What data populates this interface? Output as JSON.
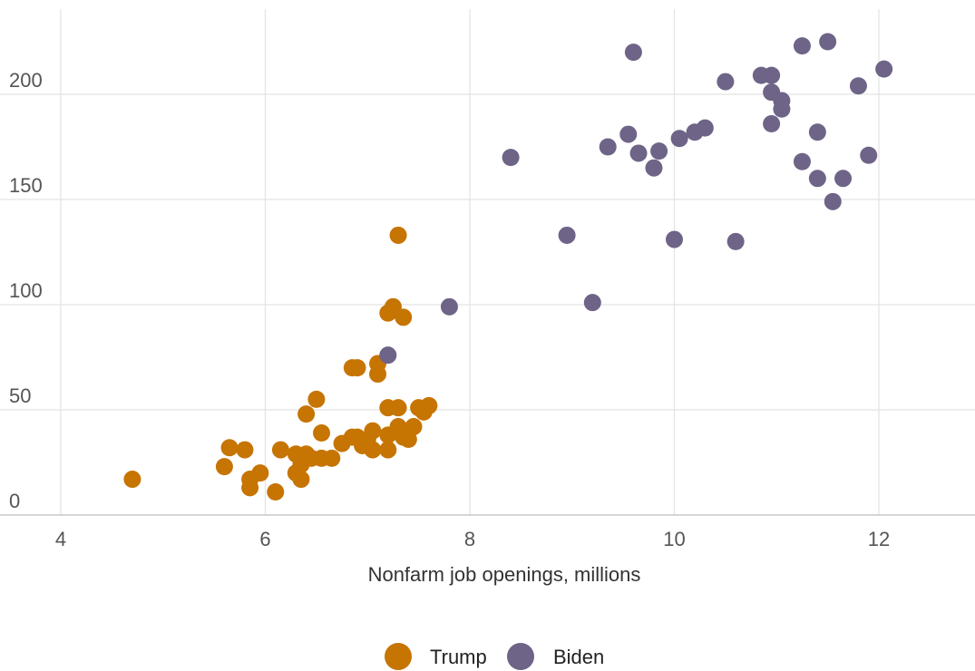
{
  "chart_data": {
    "type": "scatter",
    "xlabel": "Nonfarm job openings, millions",
    "ylabel": "",
    "xlim": [
      4,
      13
    ],
    "ylim": [
      0,
      235
    ],
    "x_ticks": [
      4,
      6,
      8,
      10,
      12
    ],
    "y_ticks": [
      0,
      50,
      100,
      150,
      200
    ],
    "grid": true,
    "legend_position": "bottom",
    "series": [
      {
        "name": "Trump",
        "color": "#c67402",
        "points": [
          [
            4.7,
            17
          ],
          [
            5.6,
            23
          ],
          [
            5.65,
            32
          ],
          [
            5.8,
            31
          ],
          [
            5.85,
            13
          ],
          [
            5.85,
            17
          ],
          [
            5.95,
            20
          ],
          [
            6.1,
            11
          ],
          [
            6.15,
            31
          ],
          [
            6.3,
            20
          ],
          [
            6.3,
            29
          ],
          [
            6.35,
            17
          ],
          [
            6.35,
            24
          ],
          [
            6.4,
            29
          ],
          [
            6.4,
            48
          ],
          [
            6.45,
            27
          ],
          [
            6.5,
            55
          ],
          [
            6.55,
            39
          ],
          [
            6.55,
            27
          ],
          [
            6.65,
            27
          ],
          [
            6.75,
            34
          ],
          [
            6.85,
            37
          ],
          [
            6.85,
            70
          ],
          [
            6.9,
            70
          ],
          [
            6.9,
            37
          ],
          [
            6.95,
            33
          ],
          [
            7.0,
            36
          ],
          [
            7.05,
            31
          ],
          [
            7.05,
            40
          ],
          [
            7.1,
            72
          ],
          [
            7.1,
            67
          ],
          [
            7.2,
            38
          ],
          [
            7.2,
            31
          ],
          [
            7.2,
            96
          ],
          [
            7.2,
            51
          ],
          [
            7.25,
            99
          ],
          [
            7.3,
            51
          ],
          [
            7.3,
            42
          ],
          [
            7.3,
            133
          ],
          [
            7.35,
            37
          ],
          [
            7.35,
            94
          ],
          [
            7.4,
            36
          ],
          [
            7.45,
            42
          ],
          [
            7.5,
            51
          ],
          [
            7.55,
            49
          ],
          [
            7.6,
            52
          ]
        ]
      },
      {
        "name": "Biden",
        "color": "#6e6487",
        "points": [
          [
            7.2,
            76
          ],
          [
            7.8,
            99
          ],
          [
            8.4,
            170
          ],
          [
            8.95,
            133
          ],
          [
            9.2,
            101
          ],
          [
            9.35,
            175
          ],
          [
            9.55,
            181
          ],
          [
            9.6,
            220
          ],
          [
            9.65,
            172
          ],
          [
            9.8,
            165
          ],
          [
            9.85,
            173
          ],
          [
            10.0,
            131
          ],
          [
            10.05,
            179
          ],
          [
            10.2,
            182
          ],
          [
            10.3,
            184
          ],
          [
            10.5,
            206
          ],
          [
            10.6,
            130
          ],
          [
            10.85,
            209
          ],
          [
            10.95,
            209
          ],
          [
            10.95,
            201
          ],
          [
            10.95,
            186
          ],
          [
            11.05,
            197
          ],
          [
            11.05,
            193
          ],
          [
            11.25,
            223
          ],
          [
            11.25,
            168
          ],
          [
            11.4,
            160
          ],
          [
            11.4,
            182
          ],
          [
            11.5,
            225
          ],
          [
            11.55,
            149
          ],
          [
            11.65,
            160
          ],
          [
            11.8,
            204
          ],
          [
            11.9,
            171
          ],
          [
            12.05,
            212
          ]
        ]
      }
    ]
  }
}
